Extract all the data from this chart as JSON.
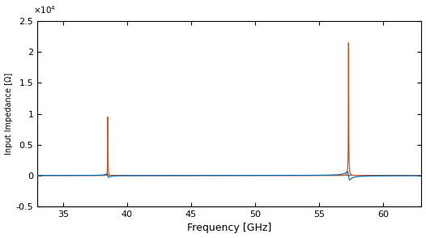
{
  "title": "",
  "xlabel": "Frequency [GHz]",
  "ylabel": "Input Impedance [Ω]",
  "xlim": [
    33,
    63
  ],
  "ylim": [
    -5000,
    25000
  ],
  "yticks": [
    -5000,
    0,
    5000,
    10000,
    15000,
    20000,
    25000
  ],
  "ytick_labels": [
    "-0.5",
    "0",
    "0.5",
    "1",
    "1.5",
    "2",
    "2.5"
  ],
  "yscale_exp": 4,
  "xticks": [
    35,
    40,
    45,
    50,
    55,
    60
  ],
  "peak1_freq": 38.5,
  "peak2_freq": 57.3,
  "peak1_blue_max": 10000,
  "peak1_blue_min": -3200,
  "peak1_red_max": 9500,
  "peak2_blue_max": 15000,
  "peak2_blue_min": -3200,
  "peak2_red_max": 21500,
  "color_blue": "#0072BD",
  "color_red": "#D95319",
  "color_dark": "#404040",
  "bg_color": "#FFFFFF",
  "linewidth": 0.9
}
